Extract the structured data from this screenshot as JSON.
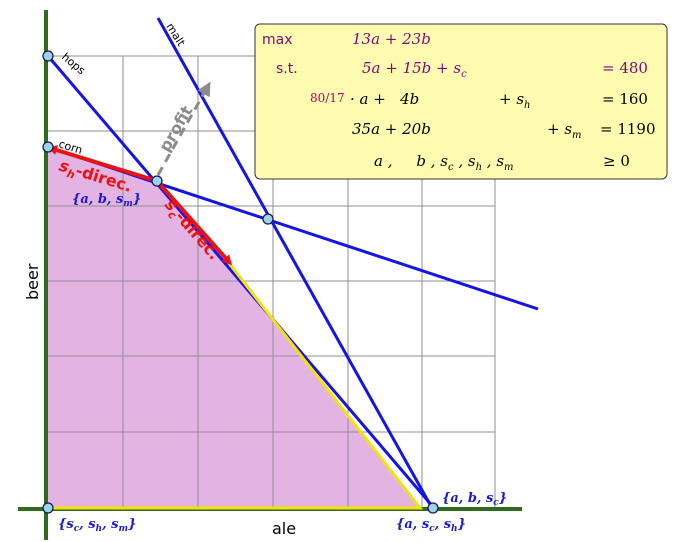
{
  "axes": {
    "x_label": "ale",
    "y_label": "beer"
  },
  "constraint_labels": {
    "hops": "hops",
    "malt": "malt",
    "corn": "corn"
  },
  "direction_labels": {
    "profit": "profit",
    "sh_direction": {
      "var": "s",
      "sub": "h",
      "suffix": "-direc."
    },
    "sc_direction": {
      "var": "s",
      "sub": "c",
      "suffix": "-direc."
    }
  },
  "vertex_labels": {
    "top_left": {
      "text": "{a, b, s",
      "sub": "m",
      "close": "}"
    },
    "bottom_right_upper": {
      "text": "{a, b, s",
      "sub": "c",
      "close": "}"
    },
    "bottom_right_lower": {
      "text": "{a, s",
      "sub1": "c",
      "mid": ", s",
      "sub2": "h",
      "close": "}"
    },
    "origin": {
      "open": "{s",
      "sub1": "c",
      "mid1": ", s",
      "sub2": "h",
      "mid2": ", s",
      "sub3": "m",
      "close": "}"
    }
  },
  "lp_box": {
    "max_keyword": "max",
    "objective": "13a + 23b",
    "st_keyword": "s.t.",
    "rows": [
      {
        "lhs": "5a + 15b + s",
        "sub": "c",
        "rhs": "= 480"
      },
      {
        "coef": "80/17",
        "lhs": "· a +   4b",
        "slack": "+ s",
        "sub": "h",
        "rhs": "= 160"
      },
      {
        "lhs": "35a + 20b",
        "slack": "+ s",
        "sub": "m",
        "rhs": "= 1190"
      },
      {
        "nonneg": "a ,     b , s",
        "sub1": "c",
        "mid1": " , s",
        "sub2": "h",
        "mid2": " , s",
        "sub3": "m",
        "rhs": "≥ 0"
      }
    ]
  },
  "colors": {
    "feasible_region": "#e3b4e3",
    "axis": "#2e6b1f",
    "constraint_line": "#1414e6",
    "feasible_edge": "#f5e10a",
    "direction_arrow": "#ee1111",
    "profit_arrow": "#8c8c8c",
    "vertex_fill": "#9ad3ec",
    "box_fill": "#fefbb0",
    "keyword": "#7a0a7a",
    "label_blue": "#1a1acc"
  }
}
